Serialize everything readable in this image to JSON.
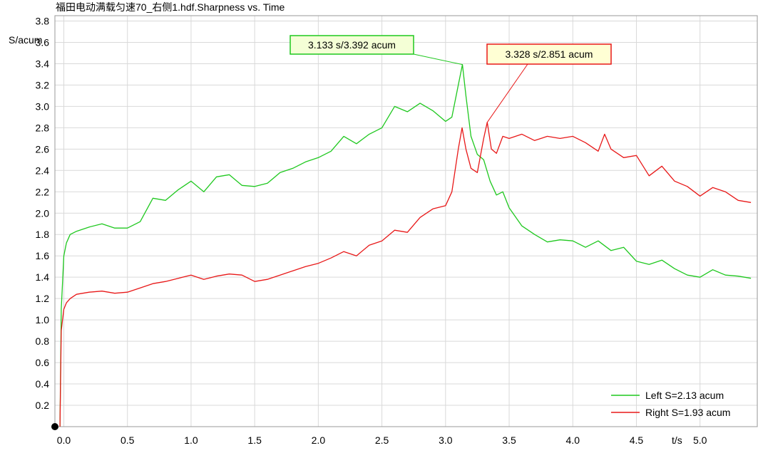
{
  "chart_data": {
    "type": "line",
    "title": "福田电动满载匀速70_右侧1.hdf.Sharpness vs. Time",
    "xlabel": "t/s",
    "ylabel": "S/acum",
    "xlim": [
      -0.07,
      5.45
    ],
    "ylim": [
      0,
      3.85
    ],
    "x_ticks": [
      0.0,
      0.5,
      1.0,
      1.5,
      2.0,
      2.5,
      3.0,
      3.5,
      4.0,
      4.5,
      5.0
    ],
    "y_ticks": [
      0.2,
      0.4,
      0.6,
      0.8,
      1.0,
      1.2,
      1.4,
      1.6,
      1.8,
      2.0,
      2.2,
      2.4,
      2.6,
      2.8,
      3.0,
      3.2,
      3.4,
      3.6,
      3.8
    ],
    "grid": true,
    "legend_position": "bottom-right",
    "series": [
      {
        "name": "Left S=2.13 acum",
        "color": "#1fc81f",
        "x": [
          -0.03,
          -0.02,
          0.0,
          0.02,
          0.05,
          0.1,
          0.2,
          0.3,
          0.4,
          0.5,
          0.6,
          0.7,
          0.8,
          0.9,
          1.0,
          1.1,
          1.2,
          1.3,
          1.4,
          1.5,
          1.6,
          1.7,
          1.8,
          1.9,
          2.0,
          2.1,
          2.2,
          2.3,
          2.4,
          2.5,
          2.6,
          2.7,
          2.8,
          2.9,
          3.0,
          3.05,
          3.1,
          3.133,
          3.16,
          3.2,
          3.25,
          3.3,
          3.35,
          3.4,
          3.45,
          3.5,
          3.6,
          3.7,
          3.8,
          3.9,
          4.0,
          4.1,
          4.2,
          4.3,
          4.4,
          4.5,
          4.6,
          4.7,
          4.8,
          4.9,
          5.0,
          5.1,
          5.2,
          5.3,
          5.4
        ],
        "y": [
          0.0,
          1.1,
          1.6,
          1.72,
          1.8,
          1.83,
          1.87,
          1.9,
          1.86,
          1.86,
          1.92,
          2.14,
          2.12,
          2.22,
          2.3,
          2.2,
          2.34,
          2.36,
          2.26,
          2.25,
          2.28,
          2.38,
          2.42,
          2.48,
          2.52,
          2.58,
          2.72,
          2.65,
          2.74,
          2.8,
          3.0,
          2.95,
          3.03,
          2.96,
          2.86,
          2.9,
          3.2,
          3.392,
          3.1,
          2.72,
          2.55,
          2.5,
          2.3,
          2.17,
          2.2,
          2.05,
          1.88,
          1.8,
          1.73,
          1.75,
          1.74,
          1.68,
          1.74,
          1.65,
          1.68,
          1.55,
          1.52,
          1.56,
          1.48,
          1.42,
          1.4,
          1.47,
          1.42,
          1.41,
          1.39
        ]
      },
      {
        "name": "Right S=1.93 acum",
        "color": "#e81818",
        "x": [
          -0.03,
          -0.02,
          0.0,
          0.02,
          0.05,
          0.1,
          0.2,
          0.3,
          0.4,
          0.5,
          0.6,
          0.7,
          0.8,
          0.9,
          1.0,
          1.1,
          1.2,
          1.3,
          1.4,
          1.5,
          1.6,
          1.7,
          1.8,
          1.9,
          2.0,
          2.1,
          2.2,
          2.3,
          2.4,
          2.5,
          2.6,
          2.7,
          2.8,
          2.9,
          3.0,
          3.05,
          3.1,
          3.13,
          3.16,
          3.2,
          3.25,
          3.3,
          3.328,
          3.36,
          3.4,
          3.45,
          3.5,
          3.6,
          3.7,
          3.8,
          3.9,
          4.0,
          4.1,
          4.2,
          4.25,
          4.3,
          4.4,
          4.5,
          4.6,
          4.7,
          4.8,
          4.9,
          5.0,
          5.1,
          5.2,
          5.3,
          5.4
        ],
        "y": [
          0.0,
          0.9,
          1.1,
          1.16,
          1.2,
          1.24,
          1.26,
          1.27,
          1.25,
          1.26,
          1.3,
          1.34,
          1.36,
          1.39,
          1.42,
          1.38,
          1.41,
          1.43,
          1.42,
          1.36,
          1.38,
          1.42,
          1.46,
          1.5,
          1.53,
          1.58,
          1.64,
          1.6,
          1.7,
          1.74,
          1.84,
          1.82,
          1.96,
          2.04,
          2.07,
          2.2,
          2.6,
          2.8,
          2.6,
          2.42,
          2.38,
          2.7,
          2.851,
          2.6,
          2.56,
          2.72,
          2.7,
          2.74,
          2.68,
          2.72,
          2.7,
          2.72,
          2.66,
          2.58,
          2.74,
          2.6,
          2.52,
          2.54,
          2.35,
          2.44,
          2.3,
          2.25,
          2.16,
          2.24,
          2.2,
          2.12,
          2.1
        ]
      }
    ],
    "annotations": [
      {
        "series": 0,
        "text": "3.133 s/3.392 acum",
        "x": 3.133,
        "y": 3.392
      },
      {
        "series": 1,
        "text": "3.328 s/2.851 acum",
        "x": 3.328,
        "y": 2.851
      }
    ]
  }
}
